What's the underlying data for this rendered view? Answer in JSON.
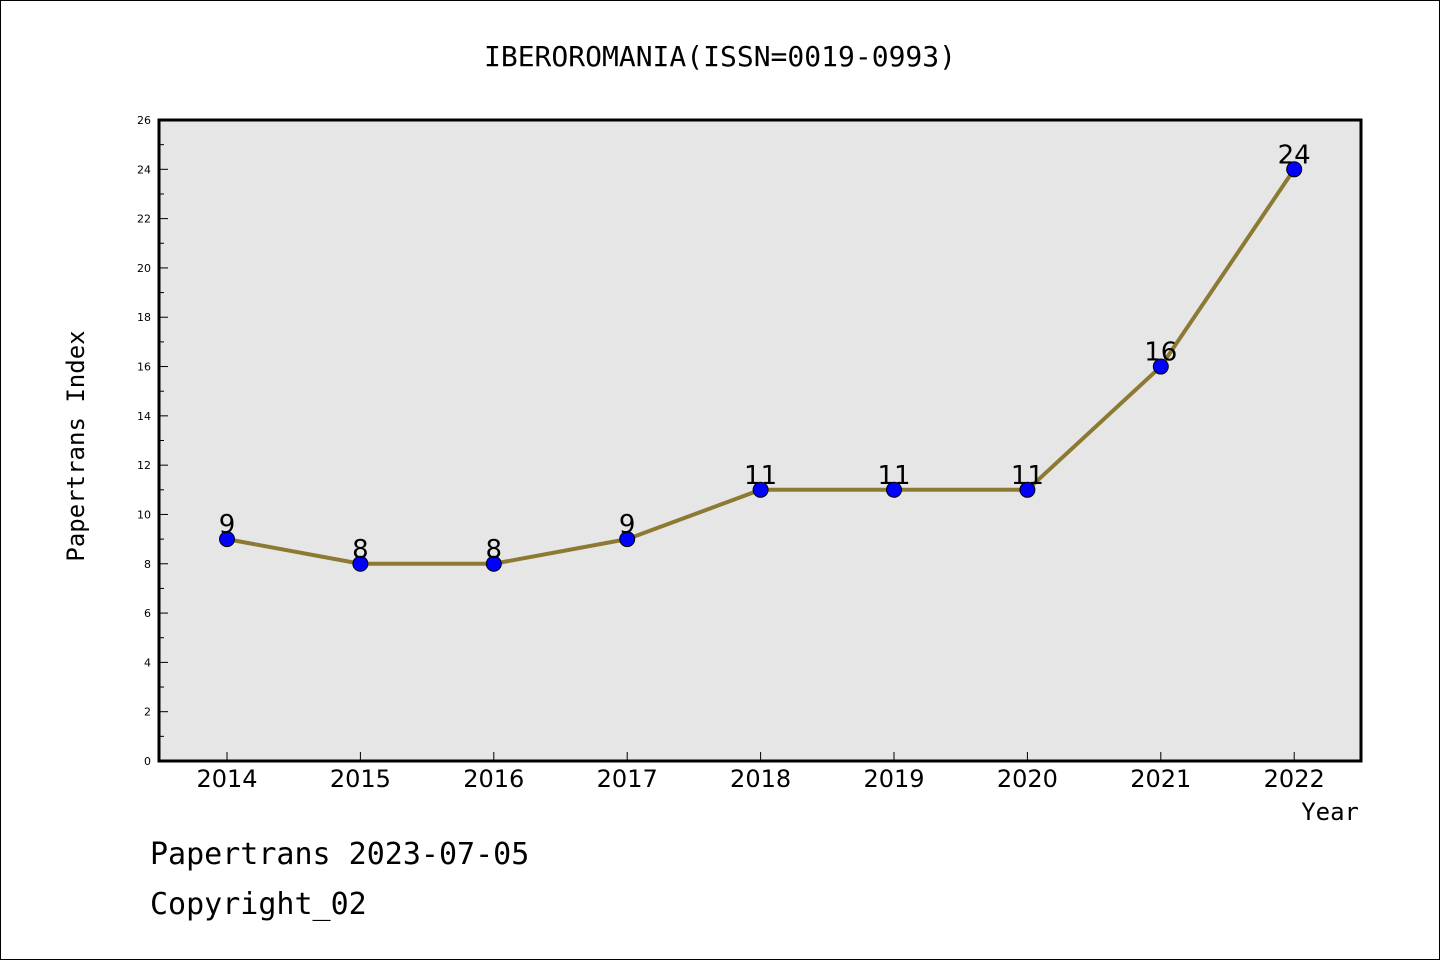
{
  "chart_data": {
    "type": "line",
    "title": "IBEROROMANIA(ISSN=0019-0993)",
    "xlabel": "Year",
    "ylabel": "Papertrans Index",
    "categories": [
      "2014",
      "2015",
      "2016",
      "2017",
      "2018",
      "2019",
      "2020",
      "2021",
      "2022"
    ],
    "series": [
      {
        "values": [
          9,
          8,
          8,
          9,
          11,
          11,
          11,
          16,
          24
        ]
      }
    ],
    "data_labels": [
      "9",
      "8",
      "8",
      "9",
      "11",
      "11",
      "11",
      "16",
      "24"
    ],
    "y_ticks": [
      0,
      2,
      4,
      6,
      8,
      10,
      12,
      14,
      16,
      18,
      20,
      22,
      24,
      26
    ],
    "ylim": [
      0,
      26
    ],
    "grid": false,
    "colors": {
      "line": "#8c7a32",
      "marker": "#0000ff",
      "plot_bg": "#e6e6e6",
      "axis": "#000000"
    }
  },
  "footer": {
    "line1": "Papertrans 2023-07-05",
    "line2": "Copyright_02"
  }
}
